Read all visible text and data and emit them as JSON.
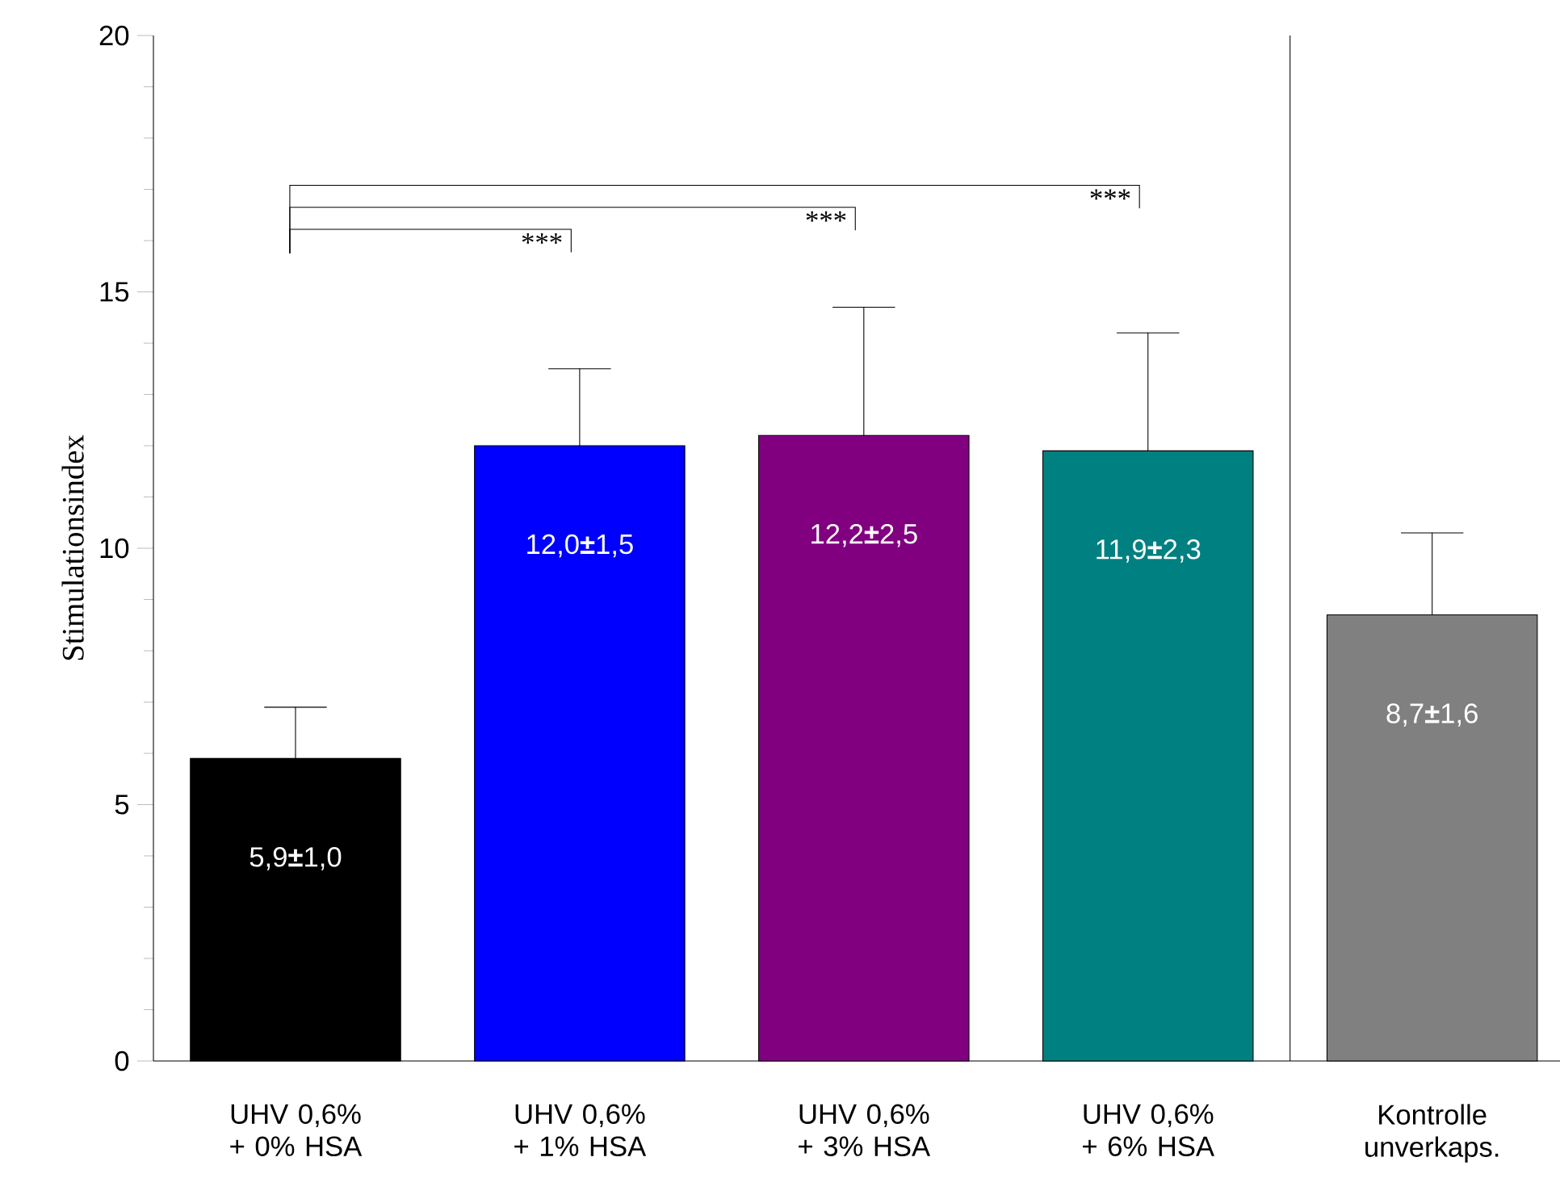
{
  "chart_data": {
    "type": "bar",
    "ylabel": "Stimulationsindex",
    "categories": [
      "UHV 0,6% + 0% HSA",
      "UHV 0,6% + 1% HSA",
      "UHV 0,6% + 3% HSA",
      "UHV 0,6% + 6% HSA",
      "Kontrolle unverkaps."
    ],
    "values": [
      5.9,
      12.0,
      12.2,
      11.9,
      8.7
    ],
    "colors": [
      "#000000",
      "#0000ff",
      "#800080",
      "#008080",
      "#808080"
    ],
    "errors": [
      [
        5.9,
        6.9
      ],
      [
        12.0,
        13.5
      ],
      [
        12.2,
        14.7
      ],
      [
        11.9,
        14.2
      ],
      [
        8.7,
        10.3
      ]
    ],
    "value_labels": [
      "5,9**±**1,0",
      "12,0**±**1,5",
      "12,2**±**2,5",
      "11,9**±**2,3",
      "8,7**±**1,6"
    ],
    "ylim": [
      0,
      20
    ],
    "yticks": [
      0,
      5,
      10,
      15,
      20
    ],
    "annotations": [
      "***",
      "***",
      "***"
    ]
  }
}
